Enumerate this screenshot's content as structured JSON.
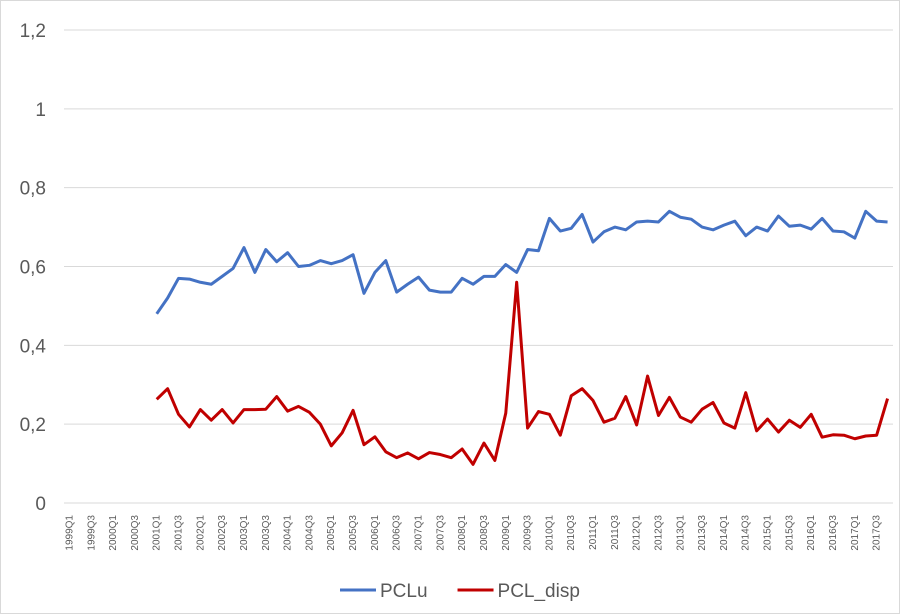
{
  "chart_data": {
    "type": "line",
    "categories": [
      "1999Q1",
      null,
      "1999Q3",
      null,
      "2000Q1",
      null,
      "2000Q3",
      null,
      "2001Q1",
      null,
      "2001Q3",
      null,
      "2002Q1",
      null,
      "2002Q3",
      null,
      "2003Q1",
      null,
      "2003Q3",
      null,
      "2004Q1",
      null,
      "2004Q3",
      null,
      "2005Q1",
      null,
      "2005Q3",
      null,
      "2006Q1",
      null,
      "2006Q3",
      null,
      "2007Q1",
      null,
      "2007Q3",
      null,
      "2008Q1",
      null,
      "2008Q3",
      null,
      "2009Q1",
      null,
      "2009Q3",
      null,
      "2010Q1",
      null,
      "2010Q3",
      null,
      "2011Q1",
      null,
      "2011Q3",
      null,
      "2012Q1",
      null,
      "2012Q3",
      null,
      "2013Q1",
      null,
      "2013Q3",
      null,
      "2014Q1",
      null,
      "2014Q3",
      null,
      "2015Q1",
      null,
      "2015Q3",
      null,
      "2016Q1",
      null,
      "2016Q3",
      null,
      "2017Q1",
      null,
      "2017Q3",
      null
    ],
    "series": [
      {
        "name": "PCLu",
        "color": "#4472c4",
        "values": [
          null,
          null,
          null,
          null,
          null,
          null,
          null,
          null,
          0.48,
          0.52,
          0.57,
          0.568,
          0.56,
          0.555,
          0.575,
          0.595,
          0.648,
          0.585,
          0.643,
          0.612,
          0.635,
          0.6,
          0.603,
          0.615,
          0.607,
          0.615,
          0.63,
          0.532,
          0.585,
          0.615,
          0.535,
          0.555,
          0.573,
          0.54,
          0.535,
          0.535,
          0.57,
          0.555,
          0.575,
          0.575,
          0.605,
          0.585,
          0.643,
          0.64,
          0.722,
          0.69,
          0.697,
          0.732,
          0.662,
          0.688,
          0.7,
          0.693,
          0.713,
          0.715,
          0.713,
          0.74,
          0.725,
          0.72,
          0.7,
          0.693,
          0.705,
          0.715,
          0.678,
          0.7,
          0.69,
          0.728,
          0.702,
          0.705,
          0.695,
          0.722,
          0.69,
          0.688,
          0.672,
          0.74,
          0.715,
          0.713
        ]
      },
      {
        "name": "PCL_disp",
        "color": "#c00000",
        "values": [
          null,
          null,
          null,
          null,
          null,
          null,
          null,
          null,
          0.263,
          0.29,
          0.225,
          0.193,
          0.237,
          0.21,
          0.237,
          0.203,
          0.237,
          0.237,
          0.238,
          0.27,
          0.233,
          0.245,
          0.23,
          0.2,
          0.145,
          0.178,
          0.235,
          0.148,
          0.168,
          0.13,
          0.115,
          0.127,
          0.112,
          0.128,
          0.123,
          0.115,
          0.137,
          0.098,
          0.152,
          0.108,
          0.228,
          0.56,
          0.19,
          0.232,
          0.225,
          0.172,
          0.272,
          0.29,
          0.26,
          0.205,
          0.215,
          0.27,
          0.198,
          0.322,
          0.222,
          0.268,
          0.218,
          0.205,
          0.238,
          0.255,
          0.203,
          0.19,
          0.28,
          0.183,
          0.213,
          0.18,
          0.21,
          0.192,
          0.225,
          0.167,
          0.173,
          0.172,
          0.163,
          0.17,
          0.172,
          0.265
        ]
      }
    ],
    "ylim": [
      0,
      1.2
    ],
    "yticks": [
      0,
      {
        "value": 0.2,
        "label": "0,2"
      },
      {
        "value": 0.4,
        "label": "0,4"
      },
      {
        "value": 0.6,
        "label": "0,6"
      },
      {
        "value": 0.8,
        "label": "0,8"
      },
      1,
      {
        "value": 1.2,
        "label": "1,2"
      }
    ],
    "grid": true,
    "legend": "bottom"
  }
}
